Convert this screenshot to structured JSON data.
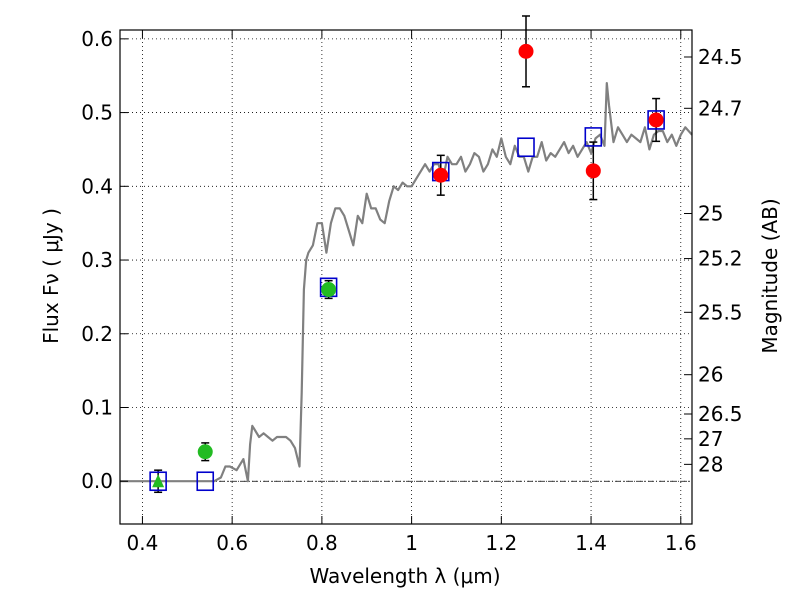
{
  "chart_data": {
    "type": "scatter",
    "xlabel": "Wavelength  λ (μm)",
    "ylabel": "Flux  Fν  ( μJy )",
    "y2label": "Magnitude (AB)",
    "xlim": [
      0.35,
      1.625
    ],
    "ylim": [
      -0.058,
      0.612
    ],
    "x_ticks": [
      {
        "value": 0.4,
        "label": "0.4"
      },
      {
        "value": 0.6,
        "label": "0.6"
      },
      {
        "value": 0.8,
        "label": "0.8"
      },
      {
        "value": 1.0,
        "label": "1"
      },
      {
        "value": 1.2,
        "label": "1.2"
      },
      {
        "value": 1.4,
        "label": "1.4"
      },
      {
        "value": 1.6,
        "label": "1.6"
      }
    ],
    "y_ticks": [
      {
        "value": 0.0,
        "label": "0.0"
      },
      {
        "value": 0.1,
        "label": "0.1"
      },
      {
        "value": 0.2,
        "label": "0.2"
      },
      {
        "value": 0.3,
        "label": "0.3"
      },
      {
        "value": 0.4,
        "label": "0.4"
      },
      {
        "value": 0.5,
        "label": "0.5"
      },
      {
        "value": 0.6,
        "label": "0.6"
      }
    ],
    "y2_ticks": [
      {
        "flux": 0.5754,
        "label": "24.5"
      },
      {
        "flux": 0.5058,
        "label": "24.7"
      },
      {
        "flux": 0.3631,
        "label": "25"
      },
      {
        "flux": 0.302,
        "label": "25.2"
      },
      {
        "flux": 0.2291,
        "label": "25.5"
      },
      {
        "flux": 0.1445,
        "label": "26"
      },
      {
        "flux": 0.0912,
        "label": "26.5"
      },
      {
        "flux": 0.0575,
        "label": "27"
      },
      {
        "flux": 0.0229,
        "label": "28"
      }
    ],
    "grid": true,
    "zero_line": true,
    "sed_model": {
      "color": "#808080",
      "x": [
        0.35,
        0.44,
        0.56,
        0.575,
        0.585,
        0.595,
        0.61,
        0.625,
        0.635,
        0.64,
        0.645,
        0.65,
        0.66,
        0.67,
        0.68,
        0.69,
        0.7,
        0.72,
        0.73,
        0.74,
        0.75,
        0.755,
        0.76,
        0.765,
        0.77,
        0.78,
        0.79,
        0.8,
        0.81,
        0.82,
        0.83,
        0.84,
        0.85,
        0.86,
        0.87,
        0.88,
        0.89,
        0.9,
        0.91,
        0.92,
        0.93,
        0.94,
        0.95,
        0.96,
        0.97,
        0.98,
        0.99,
        1.0,
        1.01,
        1.02,
        1.03,
        1.04,
        1.05,
        1.06,
        1.07,
        1.08,
        1.09,
        1.1,
        1.11,
        1.12,
        1.13,
        1.14,
        1.15,
        1.16,
        1.17,
        1.18,
        1.19,
        1.2,
        1.21,
        1.22,
        1.23,
        1.24,
        1.25,
        1.26,
        1.27,
        1.28,
        1.29,
        1.3,
        1.31,
        1.32,
        1.33,
        1.34,
        1.35,
        1.36,
        1.37,
        1.38,
        1.39,
        1.4,
        1.41,
        1.42,
        1.43,
        1.435,
        1.44,
        1.45,
        1.46,
        1.47,
        1.48,
        1.49,
        1.5,
        1.51,
        1.52,
        1.53,
        1.54,
        1.55,
        1.56,
        1.57,
        1.58,
        1.59,
        1.6,
        1.61,
        1.625
      ],
      "y": [
        0.0,
        0.0,
        0.0,
        0.005,
        0.02,
        0.02,
        0.015,
        0.03,
        0.0,
        0.05,
        0.075,
        0.07,
        0.06,
        0.065,
        0.06,
        0.055,
        0.06,
        0.06,
        0.055,
        0.045,
        0.02,
        0.12,
        0.26,
        0.3,
        0.31,
        0.32,
        0.35,
        0.35,
        0.31,
        0.35,
        0.37,
        0.37,
        0.36,
        0.34,
        0.32,
        0.36,
        0.35,
        0.39,
        0.37,
        0.37,
        0.355,
        0.35,
        0.38,
        0.4,
        0.395,
        0.405,
        0.4,
        0.4,
        0.41,
        0.42,
        0.43,
        0.42,
        0.43,
        0.43,
        0.41,
        0.44,
        0.43,
        0.43,
        0.44,
        0.42,
        0.43,
        0.445,
        0.44,
        0.42,
        0.43,
        0.45,
        0.44,
        0.465,
        0.44,
        0.43,
        0.455,
        0.44,
        0.44,
        0.42,
        0.44,
        0.44,
        0.46,
        0.435,
        0.445,
        0.44,
        0.45,
        0.46,
        0.445,
        0.455,
        0.44,
        0.45,
        0.46,
        0.445,
        0.465,
        0.47,
        0.455,
        0.54,
        0.51,
        0.46,
        0.48,
        0.47,
        0.46,
        0.47,
        0.465,
        0.46,
        0.48,
        0.45,
        0.47,
        0.475,
        0.475,
        0.46,
        0.47,
        0.455,
        0.47,
        0.48,
        0.47
      ]
    },
    "series": [
      {
        "marker": "square-open",
        "color": "#0000cc",
        "x": [
          0.435,
          0.54,
          0.815,
          1.065,
          1.255,
          1.405,
          1.545
        ],
        "y": [
          0.0,
          0.0,
          0.263,
          0.42,
          0.453,
          0.467,
          0.49
        ]
      },
      {
        "marker": "circle",
        "color": "#22bb22",
        "x": [
          0.54,
          0.815
        ],
        "y": [
          0.04,
          0.26
        ],
        "yerr": [
          0.012,
          0.012
        ]
      },
      {
        "marker": "triangle",
        "color": "#22bb22",
        "x": [
          0.435
        ],
        "y": [
          0.0
        ],
        "yerr": [
          0.015
        ]
      },
      {
        "marker": "circle",
        "color": "#ff0000",
        "x": [
          1.065,
          1.255,
          1.405,
          1.545
        ],
        "y": [
          0.415,
          0.583,
          0.421,
          0.49
        ],
        "yerr": [
          0.027,
          0.048,
          0.039,
          0.029
        ]
      }
    ]
  }
}
